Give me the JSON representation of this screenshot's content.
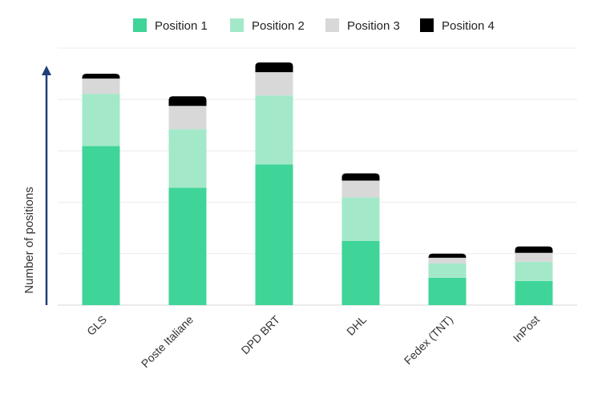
{
  "chart_data": {
    "type": "bar",
    "stacked": true,
    "title": "",
    "xlabel": "",
    "ylabel": "Number of positions",
    "categories": [
      "GLS",
      "Poste Italiane",
      "DPD BRT",
      "DHL",
      "Fedex (TNT)",
      "InPost"
    ],
    "series": [
      {
        "name": "Position 1",
        "color": "#3fd598",
        "values": [
          198,
          146,
          175,
          80,
          34,
          30
        ]
      },
      {
        "name": "Position 2",
        "color": "#a3e9c9",
        "values": [
          65,
          73,
          86,
          54,
          18,
          24
        ]
      },
      {
        "name": "Position 3",
        "color": "#d8d8d8",
        "values": [
          19,
          29,
          29,
          21,
          7,
          11
        ]
      },
      {
        "name": "Position 4",
        "color": "#000000",
        "values": [
          6,
          12,
          12,
          9,
          5,
          8
        ]
      }
    ],
    "ylim": [
      0,
      320
    ],
    "yticks": [
      0,
      64,
      128,
      192,
      256,
      320
    ],
    "ytick_labels_visible": false,
    "grid": true,
    "legend_position": "top",
    "axis_arrow_color": "#1f3f7a"
  }
}
